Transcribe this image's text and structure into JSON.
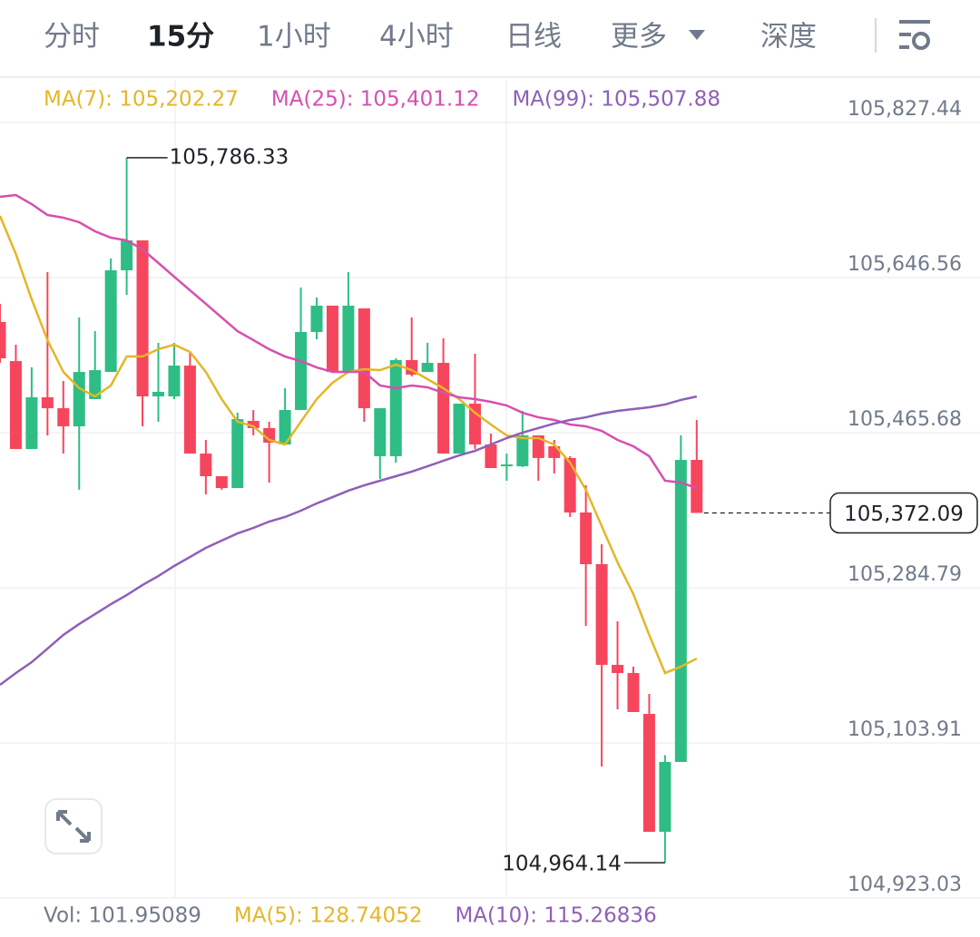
{
  "tabs": [
    "分时",
    "15分",
    "1小时",
    "4小时",
    "日线",
    "更多",
    "深度"
  ],
  "chart_data": {
    "type": "candlestick",
    "up_color": "#2ebd85",
    "down_color": "#f6465d",
    "open": [
      105594.7,
      105549.2,
      105446.6,
      105506.9,
      105494.2,
      105473.1,
      105504.8,
      105536.5,
      105655.0,
      105689.9,
      105508.0,
      105508.0,
      105543.9,
      105441.3,
      105414.9,
      105401.1,
      105479.4,
      105471.0,
      105451.9,
      105492.1,
      105583.1,
      105613.8,
      105536.5,
      105610.6,
      105438.2,
      105438.2,
      105550.3,
      105536.5,
      105547.1,
      105441.3,
      105499.5,
      105451.9,
      105426.5,
      105426.5,
      105462.5,
      105449.8,
      105436.1,
      105372.6,
      105312.3,
      105194.9,
      105185.4,
      105137.7,
      105000.2,
      105081.7,
      105433.9
    ],
    "high": [
      105615.9,
      105568.3,
      105541.8,
      105652.9,
      105526.0,
      105600.0,
      105584.1,
      105668.8,
      105786.33,
      105689.9,
      105570.4,
      105570.4,
      105559.8,
      105457.2,
      105414.9,
      105488.9,
      105492.1,
      105478.4,
      105517.5,
      105634.9,
      105623.3,
      105613.8,
      105652.9,
      105610.6,
      105494.2,
      105552.4,
      105600.0,
      105570.4,
      105575.7,
      105499.5,
      105557.7,
      105464.6,
      105441.3,
      105491.1,
      105462.5,
      105457.2,
      105438.2,
      105404.3,
      105335.6,
      105245.6,
      105192.8,
      105161.0,
      105089.6,
      105462.5,
      105480.5
    ],
    "low": [
      105547.1,
      105446.6,
      105446.6,
      105462.5,
      105441.3,
      105399.0,
      105504.8,
      105536.5,
      105626.4,
      105473.1,
      105478.4,
      105504.8,
      105441.3,
      105393.7,
      105399.0,
      105401.1,
      105462.5,
      105407.5,
      105451.9,
      105492.1,
      105574.6,
      105536.5,
      105536.5,
      105478.4,
      105411.7,
      105430.8,
      105531.3,
      105536.5,
      105441.3,
      105441.3,
      105446.6,
      105424.4,
      105409.6,
      105425.5,
      105409.6,
      105418.1,
      105367.3,
      105240.4,
      105076.4,
      105143.0,
      105139.9,
      105000.2,
      104964.14,
      105081.7,
      105372.09
    ],
    "close": [
      105552.4,
      105446.6,
      105506.9,
      105494.2,
      105473.1,
      105536.5,
      105538.6,
      105655.0,
      105689.9,
      105508.0,
      105513.3,
      105543.9,
      105441.3,
      105414.9,
      105401.1,
      105481.5,
      105471.0,
      105454.0,
      105492.1,
      105583.1,
      105613.8,
      105536.5,
      105613.8,
      105494.2,
      105494.2,
      105550.3,
      105533.4,
      105547.1,
      105441.3,
      105499.5,
      105451.9,
      105424.4,
      105428.6,
      105462.5,
      105436.1,
      105436.1,
      105372.6,
      105312.3,
      105194.9,
      105185.4,
      105139.9,
      105000.2,
      105081.7,
      105433.9,
      105372.09
    ],
    "series": [
      {
        "name": "MA(7): 105,202.27",
        "color": "#e5b627",
        "values": [
          105718.5,
          105674.1,
          105621.2,
          105573.6,
          105536.5,
          105517.5,
          105508.0,
          105520.7,
          105554.5,
          105554.5,
          105563.0,
          105568.3,
          105559.8,
          105536.5,
          105504.8,
          105478.4,
          105473.1,
          105457.2,
          105451.9,
          105478.4,
          105504.8,
          105523.9,
          105536.5,
          105539.7,
          105538.6,
          105545.0,
          105538.6,
          105528.1,
          105517.5,
          105504.8,
          105488.9,
          105475.2,
          105462.5,
          105459.3,
          105459.3,
          105451.9,
          105430.8,
          105399.0,
          105356.7,
          105314.4,
          105277.4,
          105229.8,
          105185.4,
          105192.8,
          105202.27
        ]
      },
      {
        "name": "MA(25): 105,401.12",
        "color": "#d64fb0",
        "values": [
          105740.7,
          105742.8,
          105732.2,
          105719.5,
          105716.4,
          105711.1,
          105700.5,
          105693.1,
          105689.9,
          105679.4,
          105663.6,
          105647.6,
          105631.7,
          105615.9,
          105600.0,
          105584.1,
          105573.6,
          105563.0,
          105554.5,
          105549.2,
          105541.8,
          105536.5,
          105536.5,
          105536.5,
          105520.7,
          105517.5,
          105520.7,
          105518.6,
          105512.2,
          105506.9,
          105504.8,
          105501.6,
          105497.4,
          105488.9,
          105483.6,
          105480.5,
          105475.2,
          105473.1,
          105467.8,
          105457.2,
          105449.8,
          105438.2,
          105409.6,
          105407.5,
          105401.12
        ]
      },
      {
        "name": "MA(99): 105,507.88",
        "color": "#8e5fb8",
        "values": [
          105171.6,
          105185.4,
          105198.0,
          105213.9,
          105229.8,
          105242.5,
          105254.1,
          105265.7,
          105276.3,
          105288.0,
          105298.5,
          105310.2,
          105320.7,
          105331.3,
          105339.8,
          105348.2,
          105354.6,
          105362.0,
          105367.3,
          105374.7,
          105383.2,
          105390.5,
          105398.0,
          105404.3,
          105409.6,
          105414.9,
          105420.2,
          105426.5,
          105432.9,
          105439.2,
          105444.5,
          105451.9,
          105459.3,
          105465.7,
          105471.0,
          105476.3,
          105480.5,
          105483.6,
          105487.9,
          105491.1,
          105493.2,
          105495.3,
          105498.5,
          105503.8,
          105507.88
        ]
      }
    ],
    "ylim": [
      104923.03,
      105877.15
    ],
    "yticks": [
      {
        "value": 105827.44,
        "label": "105,827.44"
      },
      {
        "value": 105646.56,
        "label": "105,646.56"
      },
      {
        "value": 105465.68,
        "label": "105,465.68"
      },
      {
        "value": 105284.79,
        "label": "105,284.79"
      },
      {
        "value": 105103.91,
        "label": "105,103.91"
      },
      {
        "value": 104923.03,
        "label": "104,923.03"
      }
    ],
    "grid": true,
    "high_label": "105,786.33",
    "low_label": "104,964.14",
    "last_label": "105,372.09",
    "volume_legend": [
      {
        "text": "Vol: 101.95089",
        "color": "#707a8a"
      },
      {
        "text": "MA(5): 128.74052",
        "color": "#e5b627"
      },
      {
        "text": "MA(10): 115.26836",
        "color": "#8e5fb8"
      }
    ]
  }
}
